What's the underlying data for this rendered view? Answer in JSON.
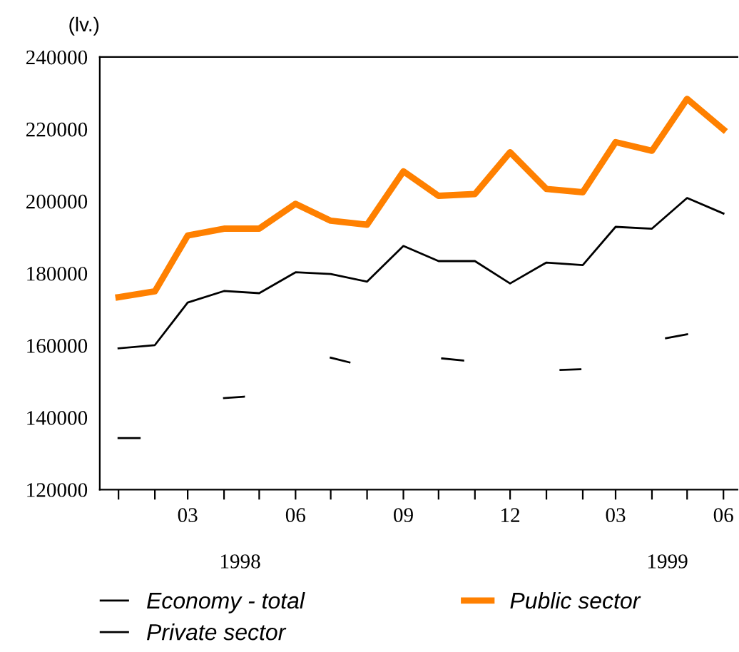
{
  "chart_data": {
    "type": "line",
    "ylabel": "(lv.)",
    "xlim": [
      "1997-12-16",
      "1999-06-13"
    ],
    "ylim": [
      120000,
      240000
    ],
    "xticks": [
      {
        "value": "1998-01",
        "label": null
      },
      {
        "value": "1998-02",
        "label": null
      },
      {
        "value": "1998-03",
        "label": "03"
      },
      {
        "value": "1998-04",
        "label": null
      },
      {
        "value": "1998-05",
        "label": null
      },
      {
        "value": "1998-06",
        "label": "06"
      },
      {
        "value": "1998-07",
        "label": null
      },
      {
        "value": "1998-08",
        "label": null
      },
      {
        "value": "1998-09",
        "label": "09"
      },
      {
        "value": "1998-10",
        "label": null
      },
      {
        "value": "1998-11",
        "label": null
      },
      {
        "value": "1998-12",
        "label": "12"
      },
      {
        "value": "1999-01",
        "label": null
      },
      {
        "value": "1999-02",
        "label": null
      },
      {
        "value": "1999-03",
        "label": "03"
      },
      {
        "value": "1999-04",
        "label": null
      },
      {
        "value": "1999-05",
        "label": null
      },
      {
        "value": "1999-06",
        "label": "06"
      }
    ],
    "yticks": [
      120000,
      140000,
      160000,
      180000,
      200000,
      220000,
      240000
    ],
    "x": [
      "1998-01",
      "1998-02",
      "1998-03",
      "1998-04",
      "1998-05",
      "1998-06",
      "1998-07",
      "1998-08",
      "1998-09",
      "1998-10",
      "1998-11",
      "1998-12",
      "1999-01",
      "1999-02",
      "1999-03",
      "1999-04",
      "1999-05",
      "1999-06"
    ],
    "series": [
      {
        "name": "Economy - total",
        "color": "#000000",
        "values": [
          159200,
          160100,
          171900,
          175100,
          174500,
          180300,
          179800,
          177700,
          187600,
          183400,
          183400,
          177200,
          183000,
          182300,
          192900,
          192400,
          200900,
          196600
        ]
      },
      {
        "name": "Private sector",
        "color": "#000000",
        "x": [
          "1998-01-01",
          "1998-01-19",
          "1998-02-01",
          "1998-04-01",
          "1998-04-18",
          "1998-05-01",
          "1998-07-01",
          "1998-07-17",
          "1998-08-01",
          "1998-10-04",
          "1998-10-22",
          "1998-11-01",
          "1999-01-13",
          "1999-01-30",
          "1999-02-01",
          "1999-04-13",
          "1999-05-01"
        ],
        "values": [
          134300,
          134300,
          null,
          145400,
          145800,
          null,
          156600,
          155300,
          null,
          156400,
          155800,
          null,
          153200,
          153400,
          null,
          162000,
          163100
        ]
      },
      {
        "name": "Public sector",
        "color": "#ff8000",
        "values": [
          173400,
          175000,
          190500,
          192400,
          192400,
          199300,
          194600,
          193500,
          208300,
          201500,
          202000,
          213600,
          203400,
          202500,
          216400,
          214000,
          228400,
          219900
        ]
      }
    ],
    "annotations": [
      "1998",
      "1999"
    ],
    "grid": false,
    "legend": "bottom",
    "marker": "none",
    "line_style": "solid"
  }
}
